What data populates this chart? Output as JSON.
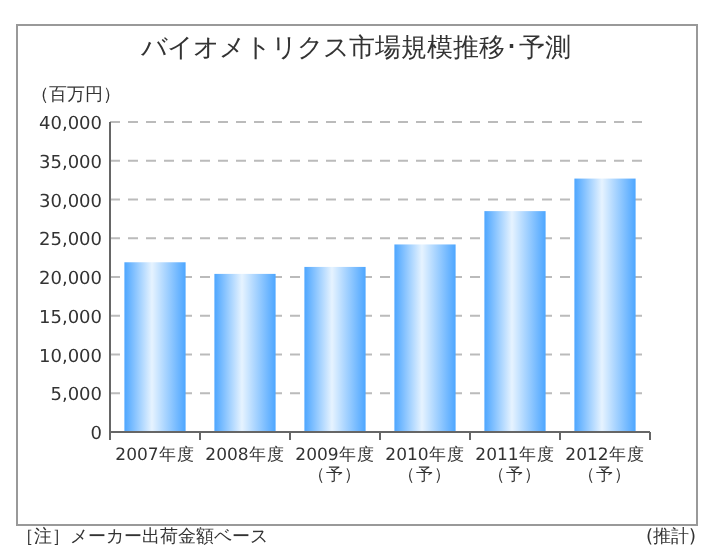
{
  "chart_data": {
    "type": "bar",
    "title": "バイオメトリクス市場規模推移･予測",
    "ylabel": "（百万円）",
    "categories": [
      "2007年度",
      "2008年度",
      "2009年度（予）",
      "2010年度（予）",
      "2011年度（予）",
      "2012年度（予）"
    ],
    "values": [
      21900,
      20400,
      21300,
      24200,
      28500,
      32700
    ],
    "color": "#4da6ff",
    "ylim": [
      0,
      40000
    ],
    "yticks": [
      {
        "value": 0,
        "label": "0"
      },
      {
        "value": 5000,
        "label": "5,000"
      },
      {
        "value": 10000,
        "label": "10,000"
      },
      {
        "value": 15000,
        "label": "15,000"
      },
      {
        "value": 20000,
        "label": "20,000"
      },
      {
        "value": 25000,
        "label": "25,000"
      },
      {
        "value": 30000,
        "label": "30,000"
      },
      {
        "value": 35000,
        "label": "35,000"
      },
      {
        "value": 40000,
        "label": "40,000"
      }
    ],
    "grid": "y",
    "annotations": [
      "［注］メーカー出荷金額ベース",
      "(推計)"
    ]
  }
}
